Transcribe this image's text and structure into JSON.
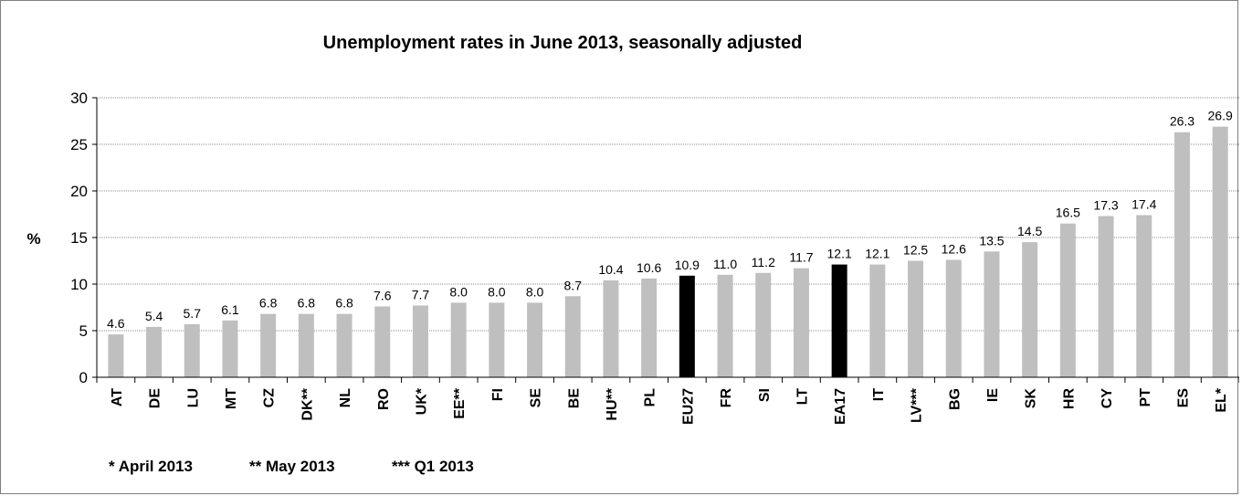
{
  "chart_data": {
    "type": "bar",
    "title": "Unemployment rates in June 2013, seasonally adjusted",
    "ylabel": "%",
    "xlabel": "",
    "ylim": [
      0,
      30
    ],
    "yticks": [
      0,
      5,
      10,
      15,
      20,
      25,
      30
    ],
    "grid": true,
    "categories": [
      "AT",
      "DE",
      "LU",
      "MT",
      "CZ",
      "DK**",
      "NL",
      "RO",
      "UK*",
      "EE**",
      "FI",
      "SE",
      "BE",
      "HU**",
      "PL",
      "EU27",
      "FR",
      "SI",
      "LT",
      "EA17",
      "IT",
      "LV***",
      "BG",
      "IE",
      "SK",
      "HR",
      "CY",
      "PT",
      "ES",
      "EL*"
    ],
    "values": [
      4.6,
      5.4,
      5.7,
      6.1,
      6.8,
      6.8,
      6.8,
      7.6,
      7.7,
      8.0,
      8.0,
      8.0,
      8.7,
      10.4,
      10.6,
      10.9,
      11.0,
      11.2,
      11.7,
      12.1,
      12.1,
      12.5,
      12.6,
      13.5,
      14.5,
      16.5,
      17.3,
      17.4,
      26.3,
      26.9
    ],
    "data_labels": [
      "4.6",
      "5.4",
      "5.7",
      "6.1",
      "6.8",
      "6.8",
      "6.8",
      "7.6",
      "7.7",
      "8.0",
      "8.0",
      "8.0",
      "8.7",
      "10.4",
      "10.6",
      "10.9",
      "11.0",
      "11.2",
      "11.7",
      "12.1",
      "12.1",
      "12.5",
      "12.6",
      "13.5",
      "14.5",
      "16.5",
      "17.3",
      "17.4",
      "26.3",
      "26.9"
    ],
    "highlighted": [
      "EU27",
      "EA17"
    ],
    "colors": {
      "bar": "#bfbfbf",
      "highlight": "#000000"
    },
    "footnotes": [
      "* April 2013",
      "** May 2013",
      "*** Q1 2013"
    ]
  }
}
